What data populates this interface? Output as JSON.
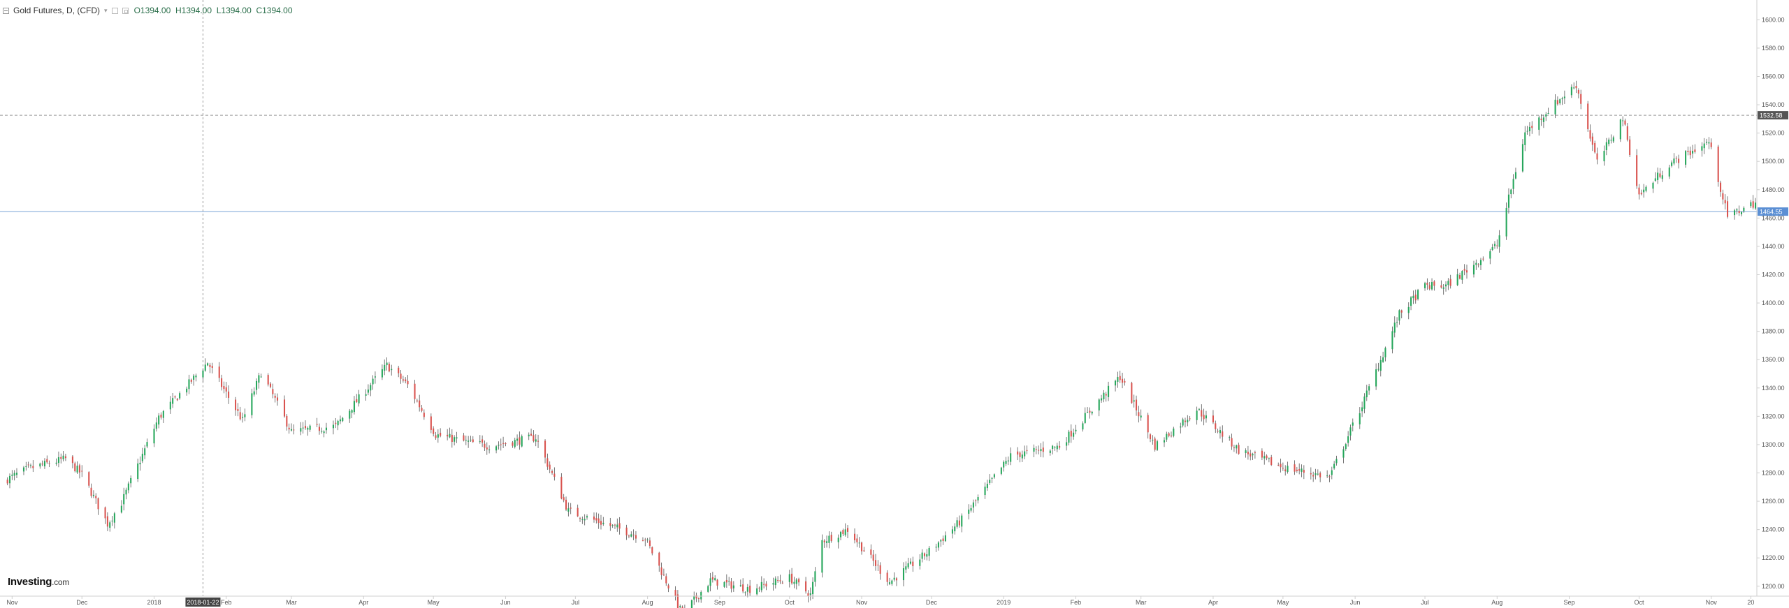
{
  "header": {
    "title": "Gold Futures, D, (CFD)",
    "caret": "▾",
    "ohlc": {
      "o_label": "O",
      "o": "1394.00",
      "h_label": "H",
      "h": "1394.00",
      "l_label": "L",
      "l": "1394.00",
      "c_label": "C",
      "c": "1394.00"
    }
  },
  "logo": {
    "main": "Investing",
    "suffix": ".com"
  },
  "colors": {
    "up": "#26a65b",
    "down": "#d9534f",
    "grid": "#eaeaea",
    "crosshair": "#999999",
    "price_line": "#7aa4d6",
    "price_tag": "#5b8fd4",
    "ref_tag": "#555555"
  },
  "chart_data": {
    "type": "candlestick",
    "title": "Gold Futures, D, (CFD)",
    "xlabel": "",
    "ylabel": "",
    "x_range": [
      "2017-10-28",
      "2019-11-20"
    ],
    "ylim": [
      1193,
      1612
    ],
    "y_ticks": [
      "1200.00",
      "1220.00",
      "1240.00",
      "1260.00",
      "1280.00",
      "1300.00",
      "1320.00",
      "1340.00",
      "1360.00",
      "1380.00",
      "1400.00",
      "1420.00",
      "1440.00",
      "1460.00",
      "1480.00",
      "1500.00",
      "1520.00",
      "1540.00",
      "1560.00",
      "1580.00",
      "1600.00"
    ],
    "x_ticks": [
      {
        "label": "Nov",
        "date": "2017-11-01"
      },
      {
        "label": "Dec",
        "date": "2017-12-01"
      },
      {
        "label": "2018",
        "date": "2018-01-01"
      },
      {
        "label": "Feb",
        "date": "2018-02-01"
      },
      {
        "label": "Mar",
        "date": "2018-03-01"
      },
      {
        "label": "Apr",
        "date": "2018-04-01"
      },
      {
        "label": "May",
        "date": "2018-05-01"
      },
      {
        "label": "Jun",
        "date": "2018-06-01"
      },
      {
        "label": "Jul",
        "date": "2018-07-01"
      },
      {
        "label": "Aug",
        "date": "2018-08-01"
      },
      {
        "label": "Sep",
        "date": "2018-09-01"
      },
      {
        "label": "Oct",
        "date": "2018-10-01"
      },
      {
        "label": "Nov",
        "date": "2018-11-01"
      },
      {
        "label": "Dec",
        "date": "2018-12-01"
      },
      {
        "label": "2019",
        "date": "2019-01-01"
      },
      {
        "label": "Feb",
        "date": "2019-02-01"
      },
      {
        "label": "Mar",
        "date": "2019-03-01"
      },
      {
        "label": "Apr",
        "date": "2019-04-01"
      },
      {
        "label": "May",
        "date": "2019-05-01"
      },
      {
        "label": "Jun",
        "date": "2019-06-01"
      },
      {
        "label": "Jul",
        "date": "2019-07-01"
      },
      {
        "label": "Aug",
        "date": "2019-08-01"
      },
      {
        "label": "Sep",
        "date": "2019-09-01"
      },
      {
        "label": "Oct",
        "date": "2019-10-01"
      },
      {
        "label": "Nov",
        "date": "2019-11-01"
      },
      {
        "label": "20",
        "date": "2019-11-18"
      }
    ],
    "crosshair": {
      "date": "2018-01-22",
      "label": "2018-01-22"
    },
    "reference_line": {
      "value": 1532.58,
      "label": "1532.58"
    },
    "last_price": {
      "value": 1464.55,
      "label": "1464.55"
    },
    "grid": false,
    "series_seed": 7,
    "anchors": [
      {
        "date": "2017-10-28",
        "price": 1274
      },
      {
        "date": "2017-11-08",
        "price": 1283
      },
      {
        "date": "2017-11-24",
        "price": 1290
      },
      {
        "date": "2017-12-01",
        "price": 1279
      },
      {
        "date": "2017-12-12",
        "price": 1244
      },
      {
        "date": "2017-12-18",
        "price": 1259
      },
      {
        "date": "2018-01-03",
        "price": 1319
      },
      {
        "date": "2018-01-24",
        "price": 1358
      },
      {
        "date": "2018-02-08",
        "price": 1317
      },
      {
        "date": "2018-02-16",
        "price": 1351
      },
      {
        "date": "2018-03-01",
        "price": 1309
      },
      {
        "date": "2018-03-20",
        "price": 1313
      },
      {
        "date": "2018-04-11",
        "price": 1356
      },
      {
        "date": "2018-04-20",
        "price": 1342
      },
      {
        "date": "2018-05-02",
        "price": 1307
      },
      {
        "date": "2018-05-15",
        "price": 1302
      },
      {
        "date": "2018-05-25",
        "price": 1299
      },
      {
        "date": "2018-06-14",
        "price": 1305
      },
      {
        "date": "2018-06-28",
        "price": 1253
      },
      {
        "date": "2018-07-12",
        "price": 1245
      },
      {
        "date": "2018-07-31",
        "price": 1234
      },
      {
        "date": "2018-08-16",
        "price": 1180
      },
      {
        "date": "2018-08-28",
        "price": 1204
      },
      {
        "date": "2018-09-14",
        "price": 1198
      },
      {
        "date": "2018-10-01",
        "price": 1206
      },
      {
        "date": "2018-10-10",
        "price": 1194
      },
      {
        "date": "2018-10-15",
        "price": 1232
      },
      {
        "date": "2018-10-26",
        "price": 1240
      },
      {
        "date": "2018-11-13",
        "price": 1203
      },
      {
        "date": "2018-12-01",
        "price": 1226
      },
      {
        "date": "2018-12-14",
        "price": 1247
      },
      {
        "date": "2019-01-04",
        "price": 1292
      },
      {
        "date": "2019-01-25",
        "price": 1299
      },
      {
        "date": "2019-02-20",
        "price": 1348
      },
      {
        "date": "2019-03-07",
        "price": 1299
      },
      {
        "date": "2019-03-25",
        "price": 1325
      },
      {
        "date": "2019-04-12",
        "price": 1296
      },
      {
        "date": "2019-05-01",
        "price": 1284
      },
      {
        "date": "2019-05-21",
        "price": 1277
      },
      {
        "date": "2019-06-04",
        "price": 1328
      },
      {
        "date": "2019-06-20",
        "price": 1392
      },
      {
        "date": "2019-07-01",
        "price": 1412
      },
      {
        "date": "2019-07-10",
        "price": 1412
      },
      {
        "date": "2019-07-22",
        "price": 1427
      },
      {
        "date": "2019-08-01",
        "price": 1441
      },
      {
        "date": "2019-08-13",
        "price": 1520
      },
      {
        "date": "2019-08-26",
        "price": 1541
      },
      {
        "date": "2019-09-04",
        "price": 1554
      },
      {
        "date": "2019-09-13",
        "price": 1499
      },
      {
        "date": "2019-09-24",
        "price": 1531
      },
      {
        "date": "2019-10-01",
        "price": 1476
      },
      {
        "date": "2019-10-14",
        "price": 1498
      },
      {
        "date": "2019-10-31",
        "price": 1514
      },
      {
        "date": "2019-11-08",
        "price": 1461
      },
      {
        "date": "2019-11-20",
        "price": 1471
      }
    ]
  }
}
